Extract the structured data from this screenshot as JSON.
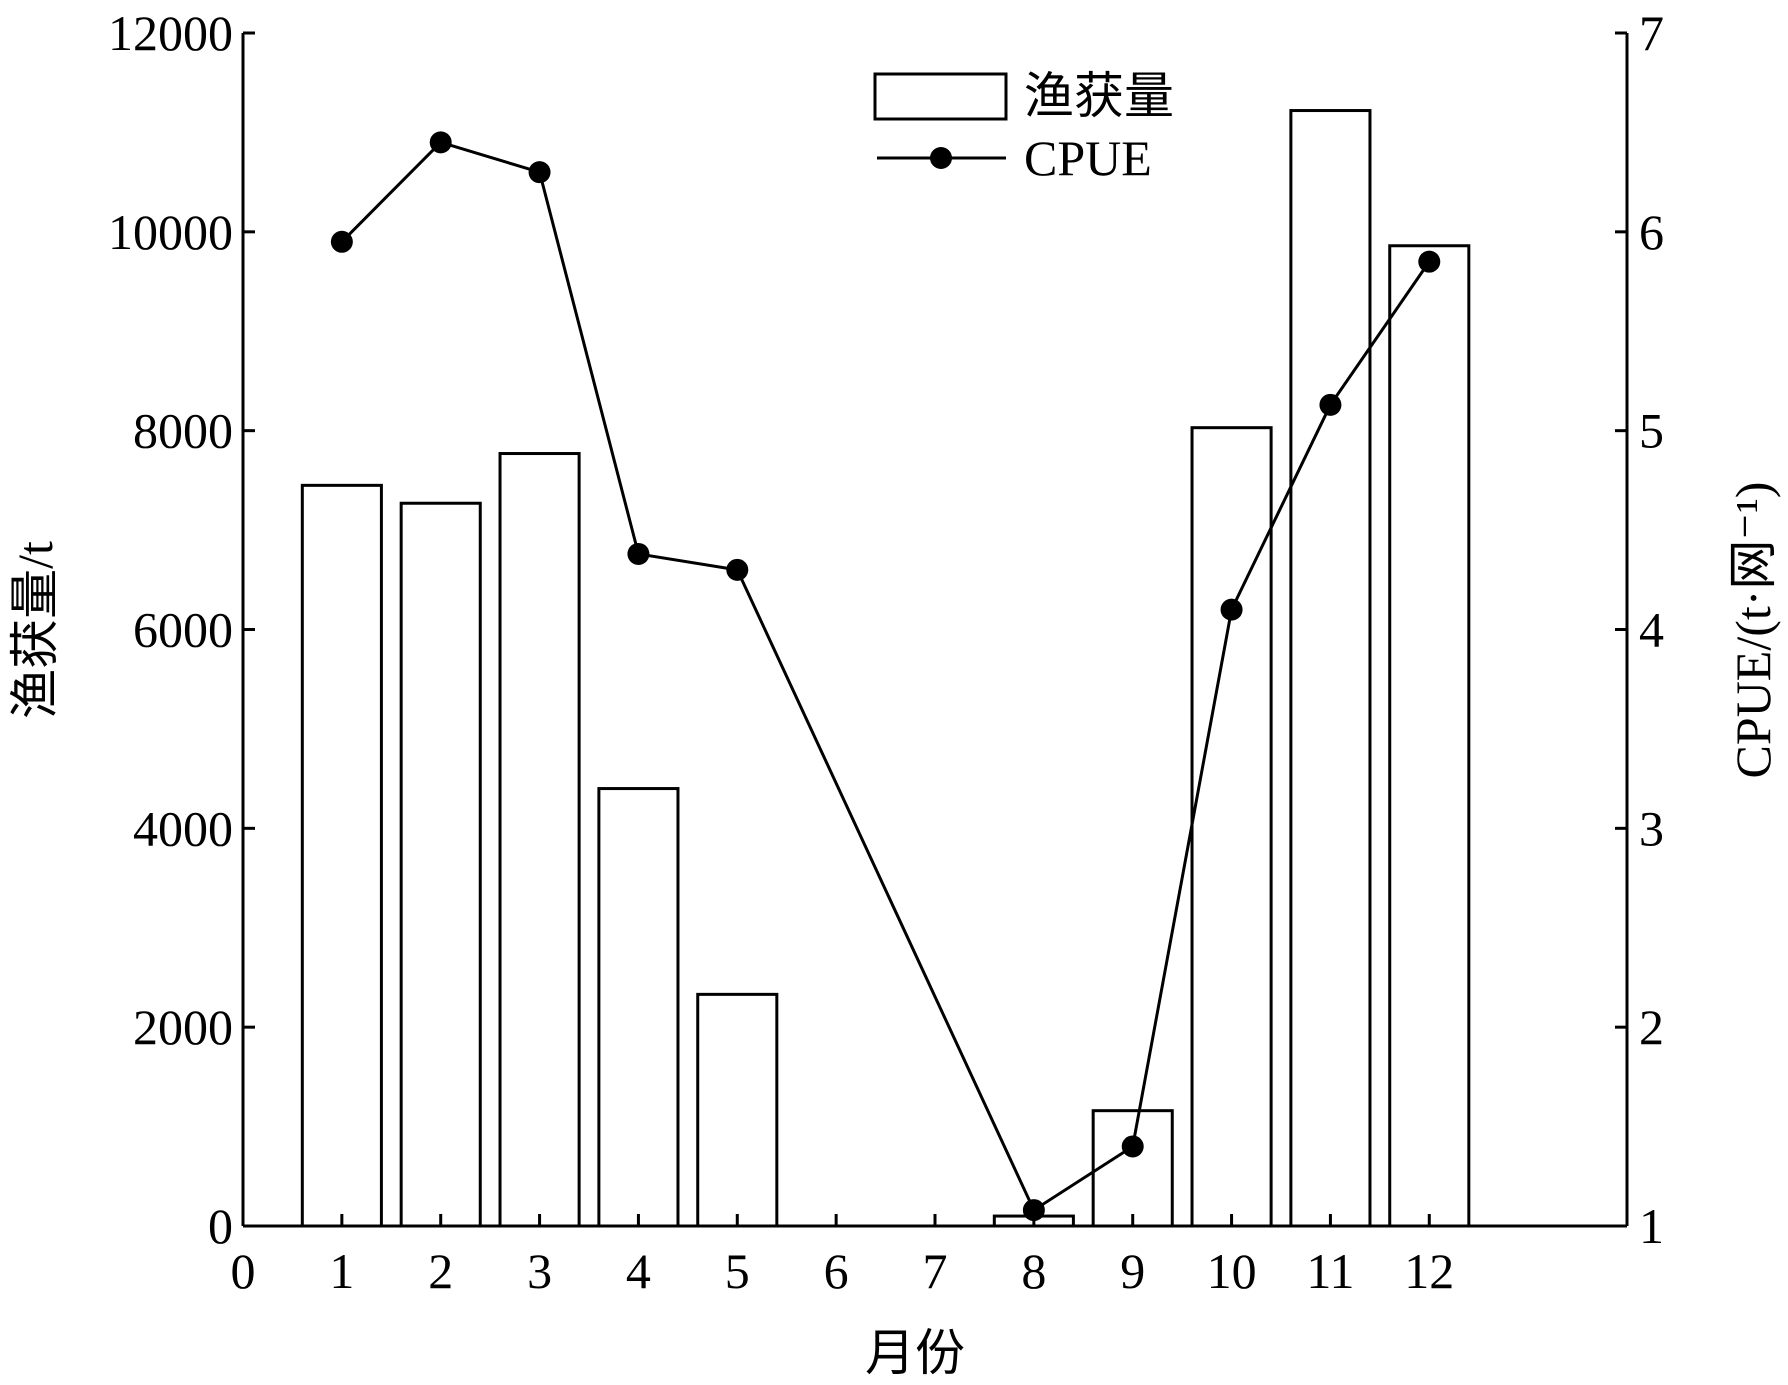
{
  "chart_data": {
    "type": "bar+line",
    "xlabel": "月份",
    "ylabel_left": "渔获量/t",
    "ylabel_right": "CPUE/(t·网⁻¹)",
    "x_ticks": [
      0,
      1,
      2,
      3,
      4,
      5,
      6,
      7,
      8,
      9,
      10,
      11,
      12
    ],
    "xlim": [
      0,
      14
    ],
    "ylim_left": [
      0,
      12000
    ],
    "ylim_right": [
      1,
      7
    ],
    "y_ticks_left": [
      0,
      2000,
      4000,
      6000,
      8000,
      10000,
      12000
    ],
    "y_ticks_right": [
      1,
      2,
      3,
      4,
      5,
      6,
      7
    ],
    "legend_position": "top-center",
    "grid": false,
    "series": [
      {
        "name": "渔获量",
        "type": "bar",
        "axis": "left",
        "x": [
          1,
          2,
          3,
          4,
          5,
          8,
          9,
          10,
          11,
          12
        ],
        "values": [
          7450,
          7270,
          7770,
          4400,
          2330,
          100,
          1160,
          8030,
          11220,
          9860
        ]
      },
      {
        "name": "CPUE",
        "type": "line",
        "axis": "right",
        "x": [
          1,
          2,
          3,
          4,
          5,
          8,
          9,
          10,
          11,
          12
        ],
        "values": [
          5.95,
          6.45,
          6.3,
          4.38,
          4.3,
          1.08,
          1.4,
          4.1,
          5.13,
          5.85
        ]
      }
    ]
  }
}
